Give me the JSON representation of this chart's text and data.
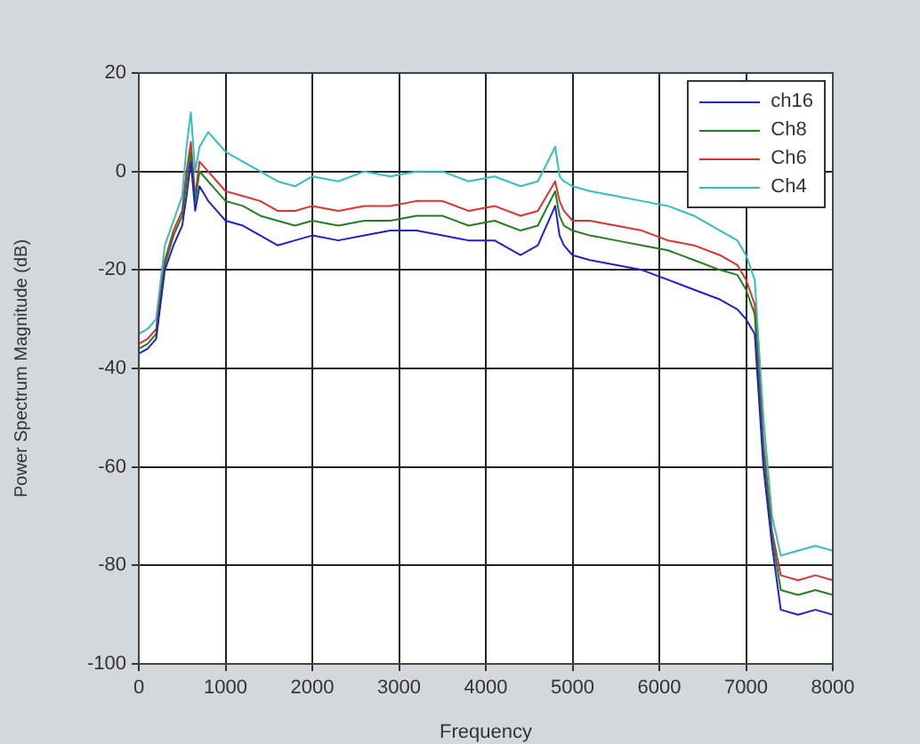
{
  "chart_data": {
    "type": "line",
    "xlabel": "Frequency",
    "ylabel": "Power Spectrum Magnitude (dB)",
    "x": [
      0,
      100,
      200,
      300,
      400,
      500,
      550,
      600,
      650,
      700,
      800,
      900,
      1000,
      1200,
      1400,
      1600,
      1800,
      2000,
      2300,
      2600,
      2900,
      3200,
      3500,
      3800,
      4100,
      4400,
      4600,
      4800,
      4850,
      4900,
      5000,
      5200,
      5500,
      5800,
      6100,
      6400,
      6700,
      6900,
      7000,
      7100,
      7200,
      7300,
      7400,
      7600,
      7800,
      8000
    ],
    "series": [
      {
        "name": "ch16",
        "color": "#2020d0",
        "values": [
          -37,
          -36,
          -34,
          -20,
          -15,
          -11,
          -5,
          2,
          -8,
          -3,
          -6,
          -8,
          -10,
          -11,
          -13,
          -15,
          -14,
          -13,
          -14,
          -13,
          -12,
          -12,
          -13,
          -14,
          -14,
          -17,
          -15,
          -7,
          -13,
          -15,
          -17,
          -18,
          -19,
          -20,
          -22,
          -24,
          -26,
          -28,
          -30,
          -33,
          -60,
          -76,
          -89,
          -90,
          -89,
          -90
        ]
      },
      {
        "name": "Ch8",
        "color": "#208020",
        "values": [
          -36,
          -35,
          -33,
          -19,
          -13,
          -9,
          -2,
          4,
          -6,
          0,
          -2,
          -4,
          -6,
          -7,
          -9,
          -10,
          -11,
          -10,
          -11,
          -10,
          -10,
          -9,
          -9,
          -11,
          -10,
          -12,
          -11,
          -4,
          -9,
          -11,
          -12,
          -13,
          -14,
          -15,
          -16,
          -18,
          -20,
          -21,
          -24,
          -29,
          -57,
          -74,
          -85,
          -86,
          -85,
          -86
        ]
      },
      {
        "name": "Ch6",
        "color": "#e03030",
        "values": [
          -35,
          -34,
          -32,
          -18,
          -12,
          -8,
          0,
          6,
          -5,
          2,
          0,
          -2,
          -4,
          -5,
          -6,
          -8,
          -8,
          -7,
          -8,
          -7,
          -7,
          -6,
          -6,
          -8,
          -7,
          -9,
          -8,
          -2,
          -6,
          -8,
          -10,
          -10,
          -11,
          -12,
          -14,
          -15,
          -17,
          -19,
          -22,
          -27,
          -55,
          -73,
          -82,
          -83,
          -82,
          -83
        ]
      },
      {
        "name": "Ch4",
        "color": "#30c0c0",
        "values": [
          -33,
          -32,
          -30,
          -15,
          -10,
          -5,
          5,
          12,
          0,
          5,
          8,
          6,
          4,
          2,
          0,
          -2,
          -3,
          -1,
          -2,
          0,
          -1,
          0,
          0,
          -2,
          -1,
          -3,
          -2,
          5,
          -1,
          -2,
          -3,
          -4,
          -5,
          -6,
          -7,
          -9,
          -12,
          -14,
          -17,
          -22,
          -50,
          -70,
          -78,
          -77,
          -76,
          -77
        ]
      }
    ],
    "xlim": [
      0,
      8000
    ],
    "xticks": [
      0,
      1000,
      2000,
      3000,
      4000,
      5000,
      6000,
      7000,
      8000
    ],
    "ylim": [
      -100,
      20
    ],
    "yticks": [
      -100,
      -80,
      -60,
      -40,
      -20,
      0,
      20
    ],
    "grid": true,
    "legend": "top right",
    "marker": "none",
    "line_style": "solid"
  }
}
